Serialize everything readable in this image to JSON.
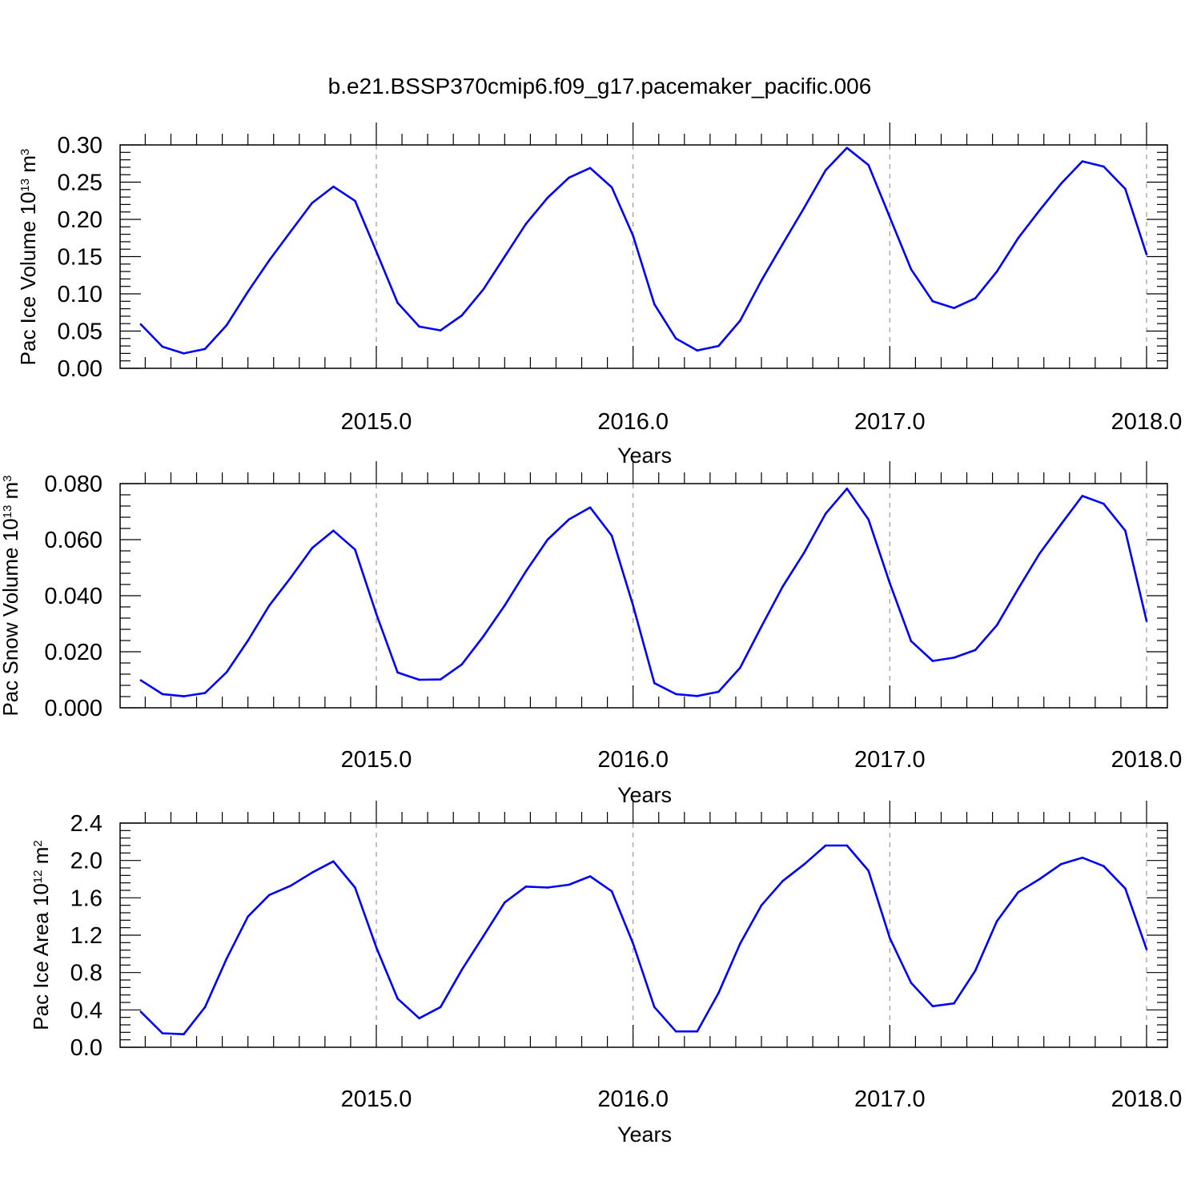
{
  "figure_title": "b.e21.BSSP370cmip6.f09_g17.pacemaker_pacific.006",
  "chart_data": [
    {
      "type": "line",
      "ylabel": {
        "text": "Pac Ice Volume 10",
        "exp": "13",
        "unit": " m",
        "unit_exp": "3"
      },
      "xlabel": "Years",
      "xlim": [
        2014.083,
        2018.083
      ],
      "ylim": [
        0,
        0.3
      ],
      "yticks": [
        "0.00",
        "0.05",
        "0.10",
        "0.15",
        "0.20",
        "0.25",
        "0.30"
      ],
      "xticks": [
        "2015.0",
        "2016.0",
        "2017.0",
        "2018.0"
      ],
      "grid_x": "dashed at major ticks",
      "line_color": "#0000ff",
      "x": [
        2014.083,
        2014.167,
        2014.25,
        2014.333,
        2014.417,
        2014.5,
        2014.583,
        2014.667,
        2014.75,
        2014.833,
        2014.917,
        2015.0,
        2015.083,
        2015.167,
        2015.25,
        2015.333,
        2015.417,
        2015.5,
        2015.583,
        2015.667,
        2015.75,
        2015.833,
        2015.917,
        2016.0,
        2016.083,
        2016.167,
        2016.25,
        2016.333,
        2016.417,
        2016.5,
        2016.583,
        2016.667,
        2016.75,
        2016.833,
        2016.917,
        2017.0,
        2017.083,
        2017.167,
        2017.25,
        2017.333,
        2017.417,
        2017.5,
        2017.583,
        2017.667,
        2017.75,
        2017.833,
        2017.917,
        2018.0
      ],
      "values": [
        0.059,
        0.029,
        0.02,
        0.026,
        0.058,
        0.103,
        0.145,
        0.184,
        0.222,
        0.244,
        0.225,
        0.157,
        0.088,
        0.056,
        0.051,
        0.071,
        0.106,
        0.15,
        0.194,
        0.229,
        0.256,
        0.269,
        0.243,
        0.178,
        0.086,
        0.04,
        0.024,
        0.03,
        0.064,
        0.118,
        0.167,
        0.216,
        0.266,
        0.296,
        0.273,
        0.203,
        0.133,
        0.09,
        0.081,
        0.094,
        0.13,
        0.175,
        0.212,
        0.248,
        0.278,
        0.271,
        0.241,
        0.153
      ]
    },
    {
      "type": "line",
      "ylabel": {
        "text": "Pac Snow Volume 10",
        "exp": "13",
        "unit": " m",
        "unit_exp": "3"
      },
      "xlabel": "Years",
      "xlim": [
        2014.083,
        2018.083
      ],
      "ylim": [
        0,
        0.08
      ],
      "yticks": [
        "0.000",
        "0.020",
        "0.040",
        "0.060",
        "0.080"
      ],
      "xticks": [
        "2015.0",
        "2016.0",
        "2017.0",
        "2018.0"
      ],
      "grid_x": "dashed at major ticks",
      "line_color": "#0000ff",
      "x": [
        2014.083,
        2014.167,
        2014.25,
        2014.333,
        2014.417,
        2014.5,
        2014.583,
        2014.667,
        2014.75,
        2014.833,
        2014.917,
        2015.0,
        2015.083,
        2015.167,
        2015.25,
        2015.333,
        2015.417,
        2015.5,
        2015.583,
        2015.667,
        2015.75,
        2015.833,
        2015.917,
        2016.0,
        2016.083,
        2016.167,
        2016.25,
        2016.333,
        2016.417,
        2016.5,
        2016.583,
        2016.667,
        2016.75,
        2016.833,
        2016.917,
        2017.0,
        2017.083,
        2017.167,
        2017.25,
        2017.333,
        2017.417,
        2017.5,
        2017.583,
        2017.667,
        2017.75,
        2017.833,
        2017.917,
        2018.0
      ],
      "values": [
        0.0098,
        0.0049,
        0.0041,
        0.0053,
        0.0127,
        0.024,
        0.0365,
        0.0465,
        0.057,
        0.0632,
        0.0565,
        0.0335,
        0.0126,
        0.01,
        0.0101,
        0.0155,
        0.0255,
        0.0365,
        0.0487,
        0.06,
        0.0672,
        0.0715,
        0.0614,
        0.0365,
        0.0088,
        0.0049,
        0.0042,
        0.0057,
        0.0143,
        0.029,
        0.0433,
        0.0555,
        0.0693,
        0.0782,
        0.0672,
        0.0445,
        0.0238,
        0.0167,
        0.0179,
        0.0206,
        0.0295,
        0.0425,
        0.055,
        0.0655,
        0.0756,
        0.0728,
        0.0632,
        0.031
      ]
    },
    {
      "type": "line",
      "ylabel": {
        "text": "Pac Ice Area 10",
        "exp": "12",
        "unit": " m",
        "unit_exp": "2"
      },
      "xlabel": "Years",
      "xlim": [
        2014.083,
        2018.083
      ],
      "ylim": [
        0,
        2.4
      ],
      "yticks": [
        "0.0",
        "0.4",
        "0.8",
        "1.2",
        "1.6",
        "2.0",
        "2.4"
      ],
      "xticks": [
        "2015.0",
        "2016.0",
        "2017.0",
        "2018.0"
      ],
      "grid_x": "dashed at major ticks",
      "line_color": "#0000ff",
      "x": [
        2014.083,
        2014.167,
        2014.25,
        2014.333,
        2014.417,
        2014.5,
        2014.583,
        2014.667,
        2014.75,
        2014.833,
        2014.917,
        2015.0,
        2015.083,
        2015.167,
        2015.25,
        2015.333,
        2015.417,
        2015.5,
        2015.583,
        2015.667,
        2015.75,
        2015.833,
        2015.917,
        2016.0,
        2016.083,
        2016.167,
        2016.25,
        2016.333,
        2016.417,
        2016.5,
        2016.583,
        2016.667,
        2016.75,
        2016.833,
        2016.917,
        2017.0,
        2017.083,
        2017.167,
        2017.25,
        2017.333,
        2017.417,
        2017.5,
        2017.583,
        2017.667,
        2017.75,
        2017.833,
        2017.917,
        2018.0
      ],
      "values": [
        0.38,
        0.15,
        0.14,
        0.43,
        0.95,
        1.4,
        1.63,
        1.73,
        1.87,
        1.99,
        1.71,
        1.07,
        0.52,
        0.31,
        0.43,
        0.83,
        1.19,
        1.55,
        1.72,
        1.71,
        1.74,
        1.83,
        1.67,
        1.11,
        0.43,
        0.17,
        0.17,
        0.58,
        1.11,
        1.52,
        1.78,
        1.96,
        2.16,
        2.16,
        1.89,
        1.17,
        0.69,
        0.44,
        0.47,
        0.82,
        1.35,
        1.66,
        1.8,
        1.96,
        2.03,
        1.94,
        1.7,
        1.05
      ]
    }
  ]
}
